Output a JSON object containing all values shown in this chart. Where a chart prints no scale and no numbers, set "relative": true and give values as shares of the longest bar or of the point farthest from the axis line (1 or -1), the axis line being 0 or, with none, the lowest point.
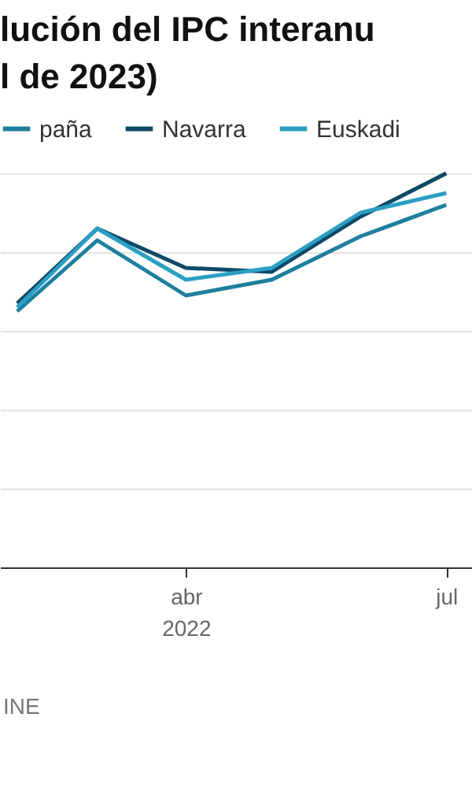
{
  "chart_data": {
    "type": "line",
    "title": "lución del IPC interanu\nl de 2023)",
    "annotations": [
      "INE"
    ],
    "x": [
      "2022-02",
      "2022-03",
      "2022-04",
      "2022-05",
      "2022-06",
      "2022-07"
    ],
    "xlim": [
      "2022-01-26",
      "2022-07-10"
    ],
    "xticks": [
      {
        "value": "2022-04",
        "label": "abr 2022"
      },
      {
        "value": "2022-07",
        "label": "jul"
      }
    ],
    "relative": true,
    "grid": "y",
    "legend": "top",
    "line_style": "solid",
    "series": [
      {
        "name": "paña",
        "color": "#1f7f9e",
        "values": [
          0.65,
          0.83,
          0.69,
          0.73,
          0.84,
          0.92
        ]
      },
      {
        "name": "Navarra",
        "color": "#0e4a68",
        "values": [
          0.67,
          0.86,
          0.76,
          0.75,
          0.89,
          1
        ]
      },
      {
        "name": "Euskadi",
        "color": "#2b9fc3",
        "values": [
          0.66,
          0.86,
          0.73,
          0.76,
          0.9,
          0.95
        ]
      }
    ]
  }
}
